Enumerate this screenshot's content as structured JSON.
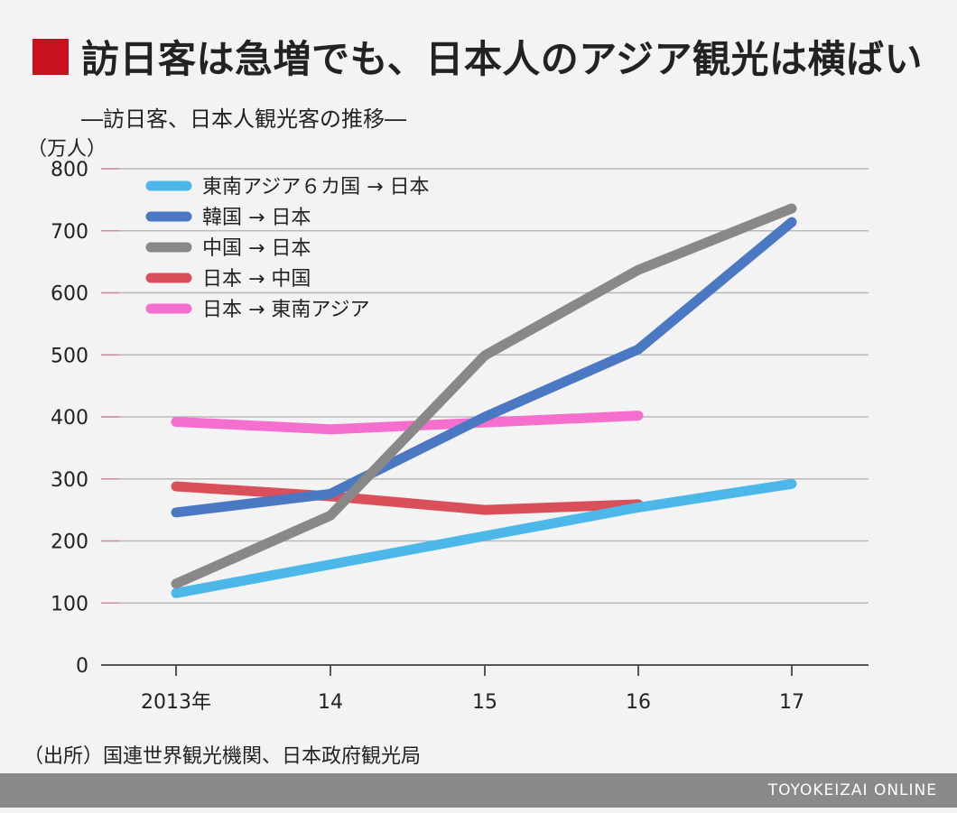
{
  "header": {
    "title": "訪日客は急増でも、日本人のアジア観光は横ばい",
    "subtitle": "―訪日客、日本人観光客の推移―",
    "title_mark_color": "#c8101f"
  },
  "footer": {
    "source": "（出所）国連世界観光機関、日本政府観光局",
    "brand": "TOYOKEIZAI ONLINE"
  },
  "chart_data": {
    "type": "line",
    "title": "",
    "xlabel": "",
    "ylabel": "（万人）",
    "categories": [
      "2013年",
      "14",
      "15",
      "16",
      "17"
    ],
    "ylim": [
      0,
      800
    ],
    "yticks": [
      0,
      100,
      200,
      300,
      400,
      500,
      600,
      700,
      800
    ],
    "grid": true,
    "legend_position": "top-left",
    "series": [
      {
        "name": "東南アジア６カ国 → 日本",
        "color": "#4cb8ea",
        "values": [
          116,
          162,
          208,
          254,
          292
        ]
      },
      {
        "name": "韓国 → 日本",
        "color": "#4a78c2",
        "values": [
          246,
          276,
          400,
          509,
          714
        ]
      },
      {
        "name": "中国 → 日本",
        "color": "#888888",
        "values": [
          131,
          241,
          499,
          637,
          736
        ]
      },
      {
        "name": "日本 → 中国",
        "color": "#d9505a",
        "values": [
          288,
          272,
          250,
          259,
          null
        ]
      },
      {
        "name": "日本 → 東南アジア",
        "color": "#f56fcf",
        "values": [
          392,
          380,
          391,
          402,
          null
        ]
      }
    ]
  }
}
